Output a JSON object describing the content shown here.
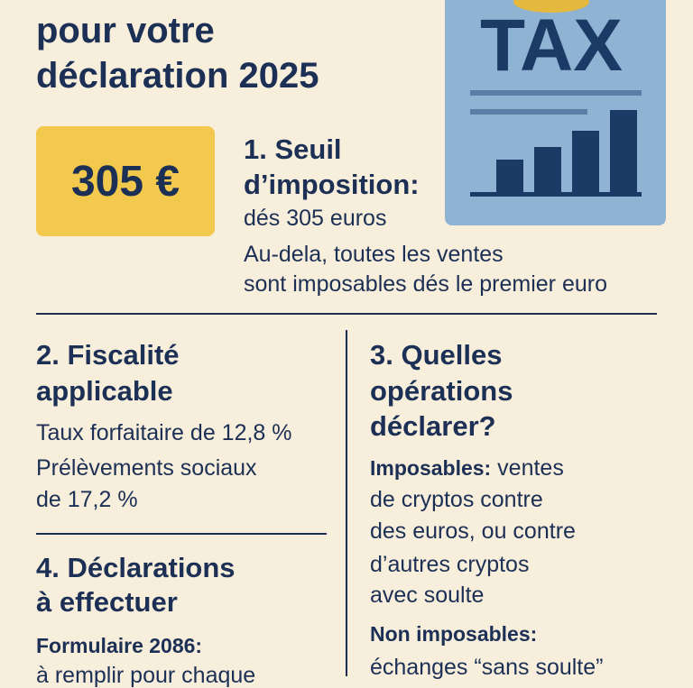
{
  "header": {
    "title_lines": [
      "pour votre",
      "déclaration 2025"
    ]
  },
  "badge": "305 €",
  "tax_icon": {
    "label": "TAX"
  },
  "section1": {
    "title_lines": [
      "1. Seuil",
      "d’imposition:"
    ],
    "lines": [
      "dés 305 euros"
    ],
    "note_lines": [
      "Au-dela, toutes les ventes",
      "sont imposables dés le premier euro"
    ]
  },
  "section2": {
    "title_lines": [
      "2. Fiscalité",
      "applicable"
    ],
    "lines": [
      "Taux forfaitaire de 12,8 %",
      "Prélèvements sociaux",
      "de 17,2 %"
    ]
  },
  "section3": {
    "title_lines": [
      "3. Quelles",
      "opérations",
      "déclarer?"
    ],
    "taxable_label": "Imposables:",
    "taxable_lines": [
      "ventes",
      "de cryptos contre",
      "des euros, ou contre",
      "d’autres cryptos",
      "avec soulte"
    ],
    "non_taxable_label": "Non imposables:",
    "non_taxable_lines": [
      "échanges “sans soulte”"
    ]
  },
  "section4": {
    "title_lines": [
      "4. Déclarations",
      "à effectuer"
    ],
    "form_label": "Formulaire 2086:",
    "lines": [
      "à remplir pour chaque"
    ]
  }
}
